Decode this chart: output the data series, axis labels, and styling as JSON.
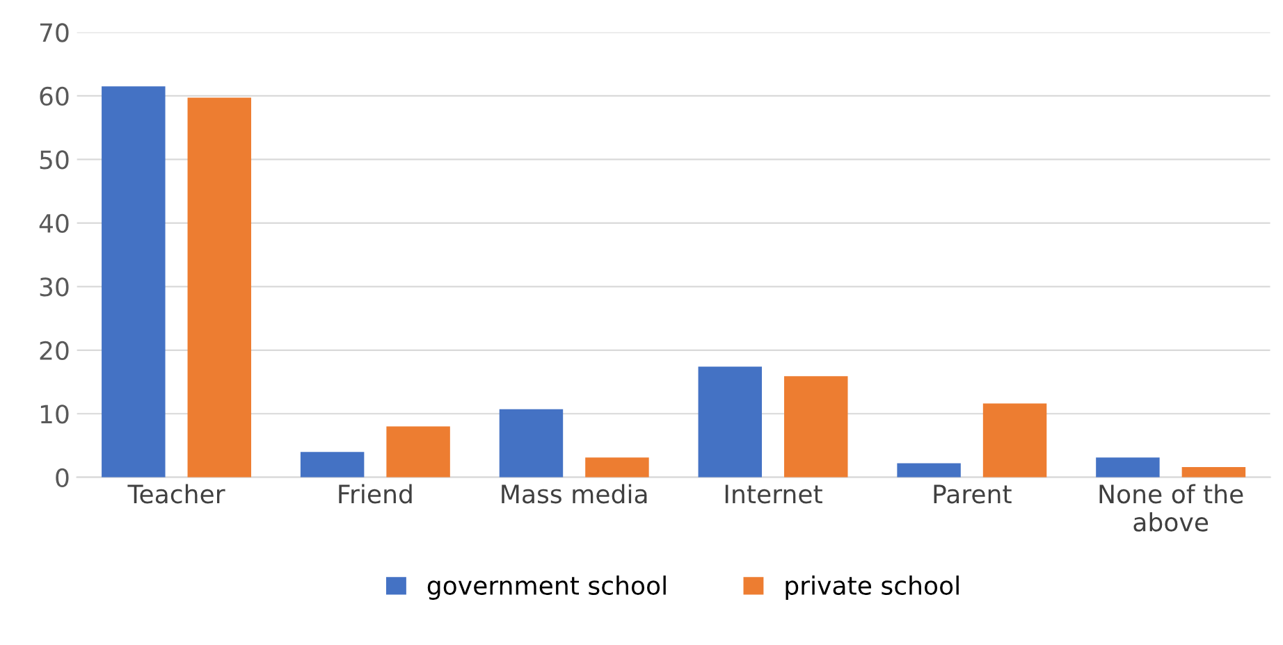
{
  "chart_data": {
    "type": "bar",
    "categories": [
      "Teacher",
      "Friend",
      "Mass media",
      "Internet",
      "Parent",
      "None of the above"
    ],
    "series": [
      {
        "name": "government school",
        "color": "#4472c4",
        "values": [
          61.5,
          4.0,
          10.7,
          17.4,
          2.2,
          3.1
        ]
      },
      {
        "name": "private school",
        "color": "#ed7d31",
        "values": [
          59.7,
          8.0,
          3.1,
          15.9,
          11.6,
          1.6
        ]
      }
    ],
    "ylim": [
      0,
      70
    ],
    "yticks": [
      0,
      10,
      20,
      30,
      40,
      50,
      60,
      70
    ],
    "grid": "y",
    "legend": "bottom"
  }
}
